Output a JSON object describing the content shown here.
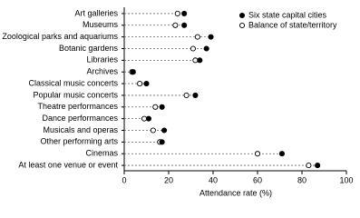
{
  "chart_data": {
    "type": "dot",
    "x_label": "Attendance rate (%)",
    "categories": [
      "Art galleries",
      "Museums",
      "Zoological parks and aquariums",
      "Botanic gardens",
      "Libraries",
      "Archives",
      "Classical music concerts",
      "Popular music concerts",
      "Theatre performances",
      "Dance performances",
      "Musicals and operas",
      "Other performing arts",
      "Cinemas",
      "At least one venue or event"
    ],
    "series": [
      {
        "name": "Six state capital cities",
        "color": "#000000",
        "values": [
          27,
          27,
          39,
          37,
          34,
          4,
          10,
          32,
          17,
          11,
          18,
          17,
          71,
          87
        ]
      },
      {
        "name": "Balance of state/territory",
        "color": "#ffffff",
        "values": [
          24,
          23,
          33,
          31,
          32,
          3.5,
          7,
          28,
          14,
          9,
          13,
          16,
          60,
          83
        ]
      }
    ],
    "xlim": [
      0,
      100
    ],
    "xticks": [
      0,
      20,
      40,
      60,
      80,
      100
    ],
    "legend": "top-right"
  }
}
